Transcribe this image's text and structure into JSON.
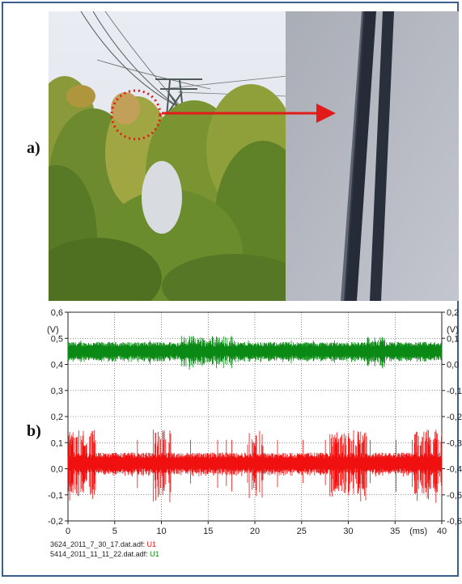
{
  "labels": {
    "a": "a)",
    "b": "b)"
  },
  "photo": {
    "description_icon": "powerline-photo-icon"
  },
  "zoom": {
    "description_icon": "zoomed-conductor-icon"
  },
  "chart_data": {
    "type": "line",
    "xlabel": "(ms)",
    "ylabel_left": "(V)",
    "ylabel_right": "(V)",
    "xlim": [
      0,
      40
    ],
    "ylim_left": [
      -0.2,
      0.6
    ],
    "ylim_right": [
      -0.6,
      0.2
    ],
    "x_ticks": [
      "0",
      "5",
      "10",
      "15",
      "20",
      "25",
      "30",
      "35",
      "40"
    ],
    "y_ticks_left": [
      "0,6",
      "0,5",
      "0,4",
      "0,3",
      "0,2",
      "0,1",
      "0,0",
      "-0,1",
      "-0,2"
    ],
    "y_ticks_right": [
      "0,2",
      "0,1",
      "0,0",
      "-0,1",
      "-0,2",
      "-0,3",
      "-0,4",
      "-0,5",
      "-0,6"
    ],
    "grid": true,
    "series": [
      {
        "name": "U1",
        "color": "#0a8a14",
        "center": 0.45,
        "amplitude": 0.03,
        "spike_amplitude": 0.06
      },
      {
        "name": "U1",
        "color": "#f01010",
        "center": 0.02,
        "amplitude": 0.035,
        "spike_amplitude": 0.13
      }
    ]
  },
  "legend": [
    {
      "file": "3624_2011_7_30_17.dat.adf:",
      "channel": "U1",
      "color": "#f01010"
    },
    {
      "file": "5414_2011_11_11_22.dat.adf:",
      "channel": "U1",
      "color": "#0a8a14"
    }
  ]
}
